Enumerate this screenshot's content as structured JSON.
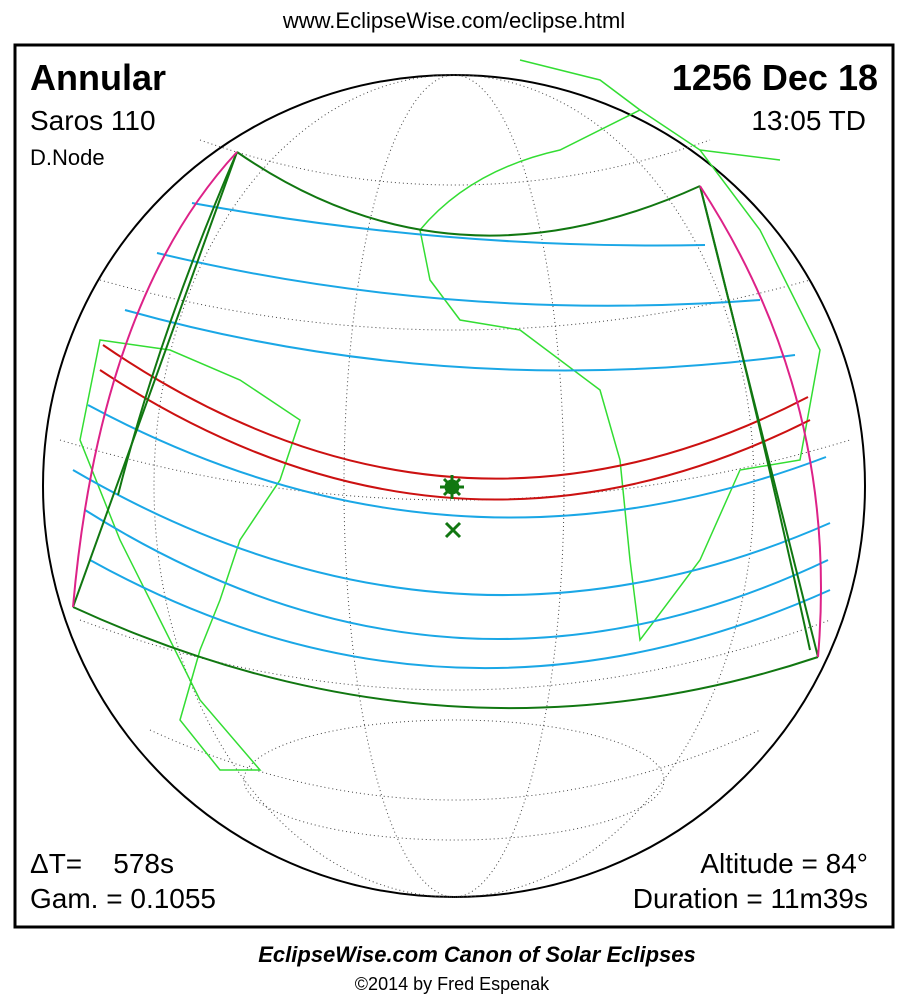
{
  "header": {
    "url": "www.EclipseWise.com/eclipse.html"
  },
  "panel": {
    "eclipse_type": "Annular",
    "date": "1256 Dec 18",
    "saros": "Saros 110",
    "time": "13:05 TD",
    "node": "D.Node",
    "delta_t": "ΔT=    578s",
    "gamma": "Gam. = 0.1055",
    "altitude": "Altitude = 84°",
    "duration": "Duration = 11m39s"
  },
  "footer": {
    "title": "EclipseWise.com Canon of Solar Eclipses",
    "copyright": "©2014 by Fred Espenak"
  }
}
